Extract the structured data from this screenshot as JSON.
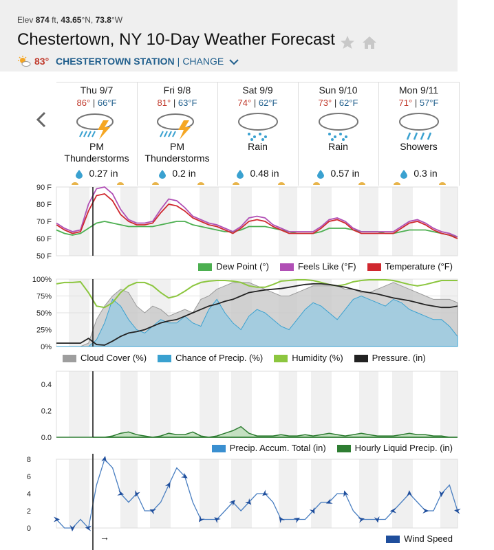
{
  "header": {
    "elev_label": "Elev",
    "elev_value": "874",
    "elev_unit": "ft,",
    "lat": "43.65",
    "lat_suffix": "°N,",
    "lon": "73.8",
    "lon_suffix": "°W",
    "title": "Chestertown, NY 10-Day Weather Forecast",
    "current_temp": "83°",
    "station": "CHESTERTOWN STATION",
    "separator": "|",
    "change": "CHANGE"
  },
  "days": [
    {
      "name": "Thu 9/7",
      "hi": "86°",
      "lo": "66°F",
      "cond1": "PM",
      "cond2": "Thunderstorms",
      "precip": "0.27 in",
      "icon": "thunderstorm-icon"
    },
    {
      "name": "Fri 9/8",
      "hi": "81°",
      "lo": "63°F",
      "cond1": "PM",
      "cond2": "Thunderstorms",
      "precip": "0.2 in",
      "icon": "thunderstorm-icon"
    },
    {
      "name": "Sat 9/9",
      "hi": "74°",
      "lo": "62°F",
      "cond1": "Rain",
      "cond2": "",
      "precip": "0.48 in",
      "icon": "rain-icon"
    },
    {
      "name": "Sun 9/10",
      "hi": "73°",
      "lo": "62°F",
      "cond1": "Rain",
      "cond2": "",
      "precip": "0.57 in",
      "icon": "rain-icon"
    },
    {
      "name": "Mon 9/11",
      "hi": "71°",
      "lo": "57°F",
      "cond1": "Showers",
      "cond2": "",
      "precip": "0.3 in",
      "icon": "showers-icon"
    }
  ],
  "colors": {
    "hi": "#c0392b",
    "lo": "#1f5e8c",
    "dew": "#4caf50",
    "feels": "#b04fb5",
    "temp": "#d0282f",
    "cloud": "#9e9e9e",
    "precipchance": "#3aa1d0",
    "humidity": "#8cc63f",
    "pressure": "#222222",
    "accum": "#3a8fd0",
    "hourly": "#2e7d32",
    "wind": "#1f4e9c"
  },
  "temp_chart": {
    "y_ticks": [
      "90 F",
      "80 F",
      "70 F",
      "60 F",
      "50 F"
    ],
    "legend": [
      "Dew Point (°)",
      "Feels Like (°F)",
      "Temperature (°F)"
    ]
  },
  "pct_chart": {
    "y_ticks": [
      "100%",
      "75%",
      "50%",
      "25%",
      "0%"
    ],
    "legend": [
      "Cloud Cover (%)",
      "Chance of Precip. (%)",
      "Humidity (%)",
      "Pressure. (in)"
    ]
  },
  "precip_chart": {
    "y_ticks": [
      "0.4",
      "0.2",
      "0.0"
    ],
    "legend": [
      "Precip. Accum. Total (in)",
      "Hourly Liquid Precip. (in)"
    ]
  },
  "wind_chart": {
    "y_ticks": [
      "8",
      "6",
      "4",
      "2",
      "0"
    ],
    "legend": [
      "Wind Speed"
    ],
    "arrow": "→"
  },
  "chart_data": [
    {
      "type": "line",
      "x": [
        0,
        3,
        6,
        9,
        12,
        15,
        18,
        21,
        24,
        27,
        30,
        33,
        36,
        39,
        42,
        45,
        48,
        51,
        54,
        57,
        60,
        63,
        66,
        69,
        72,
        75,
        78,
        81,
        84,
        87,
        90,
        93,
        96,
        99,
        102,
        105,
        108,
        111,
        114,
        117,
        120,
        123,
        126,
        129,
        132,
        135,
        138,
        141,
        144,
        147,
        150
      ],
      "series": [
        {
          "name": "Temperature (°F)",
          "values": [
            68,
            65,
            63,
            64,
            76,
            85,
            86,
            82,
            74,
            70,
            68,
            68,
            69,
            75,
            80,
            79,
            76,
            72,
            70,
            68,
            67,
            65,
            63,
            66,
            70,
            71,
            70,
            67,
            65,
            63,
            63,
            63,
            63,
            66,
            70,
            71,
            69,
            65,
            63,
            63,
            63,
            63,
            63,
            66,
            69,
            70,
            68,
            65,
            63,
            62,
            60
          ]
        },
        {
          "name": "Feels Like (°F)",
          "values": [
            69,
            66,
            64,
            65,
            80,
            89,
            90,
            86,
            77,
            71,
            69,
            69,
            70,
            77,
            83,
            82,
            78,
            73,
            71,
            69,
            68,
            66,
            64,
            67,
            72,
            73,
            72,
            68,
            66,
            64,
            64,
            64,
            64,
            67,
            71,
            72,
            70,
            66,
            64,
            64,
            64,
            64,
            64,
            67,
            70,
            71,
            69,
            66,
            64,
            63,
            61
          ]
        },
        {
          "name": "Dew Point (°)",
          "values": [
            65,
            63,
            62,
            63,
            66,
            69,
            70,
            69,
            68,
            67,
            67,
            67,
            67,
            68,
            69,
            70,
            70,
            68,
            67,
            66,
            65,
            64,
            64,
            65,
            67,
            67,
            67,
            66,
            65,
            64,
            63,
            63,
            63,
            64,
            66,
            66,
            66,
            65,
            64,
            64,
            64,
            63,
            63,
            64,
            65,
            65,
            65,
            64,
            63,
            62,
            61
          ]
        }
      ],
      "y_ticks": [
        "90 F",
        "80 F",
        "70 F",
        "60 F",
        "50 F"
      ],
      "ylim": [
        50,
        90
      ],
      "legend": "bottom-right"
    },
    {
      "type": "area",
      "x": [
        0,
        3,
        6,
        9,
        12,
        15,
        18,
        21,
        24,
        27,
        30,
        33,
        36,
        39,
        42,
        45,
        48,
        51,
        54,
        57,
        60,
        63,
        66,
        69,
        72,
        75,
        78,
        81,
        84,
        87,
        90,
        93,
        96,
        99,
        102,
        105,
        108,
        111,
        114,
        117,
        120,
        123,
        126,
        129,
        132,
        135,
        138,
        141,
        144,
        147,
        150
      ],
      "series": [
        {
          "name": "Cloud Cover (%)",
          "values": [
            0,
            0,
            0,
            0,
            5,
            40,
            60,
            75,
            85,
            80,
            60,
            50,
            60,
            55,
            45,
            50,
            55,
            50,
            70,
            75,
            85,
            90,
            95,
            95,
            95,
            90,
            85,
            80,
            75,
            75,
            80,
            85,
            90,
            90,
            90,
            90,
            85,
            85,
            80,
            80,
            85,
            90,
            95,
            90,
            85,
            80,
            75,
            70,
            70,
            70,
            65
          ]
        },
        {
          "name": "Chance of Precip. (%)",
          "values": [
            0,
            0,
            0,
            0,
            0,
            10,
            35,
            70,
            60,
            40,
            25,
            20,
            30,
            40,
            35,
            35,
            45,
            35,
            30,
            55,
            70,
            50,
            35,
            25,
            45,
            55,
            50,
            40,
            30,
            25,
            40,
            55,
            65,
            60,
            50,
            40,
            55,
            70,
            75,
            70,
            65,
            60,
            70,
            65,
            55,
            50,
            45,
            40,
            40,
            30,
            15
          ]
        },
        {
          "name": "Humidity (%)",
          "values": [
            93,
            95,
            95,
            96,
            80,
            60,
            58,
            65,
            80,
            90,
            95,
            95,
            90,
            80,
            72,
            75,
            82,
            90,
            95,
            97,
            98,
            98,
            97,
            95,
            90,
            88,
            88,
            92,
            97,
            98,
            99,
            99,
            98,
            95,
            92,
            90,
            92,
            96,
            98,
            99,
            99,
            99,
            98,
            95,
            92,
            90,
            92,
            95,
            98,
            98,
            98
          ]
        },
        {
          "name": "Pressure. (in)",
          "values": [
            5,
            5,
            5,
            5,
            12,
            3,
            2,
            8,
            15,
            20,
            22,
            25,
            30,
            35,
            38,
            40,
            45,
            50,
            55,
            60,
            63,
            67,
            70,
            75,
            80,
            82,
            84,
            85,
            86,
            88,
            90,
            92,
            93,
            93,
            92,
            90,
            88,
            85,
            82,
            80,
            78,
            75,
            72,
            70,
            68,
            65,
            62,
            60,
            58,
            58,
            60
          ]
        }
      ],
      "y_ticks": [
        "100%",
        "75%",
        "50%",
        "25%",
        "0%"
      ],
      "ylim": [
        0,
        100
      ],
      "legend": "bottom"
    },
    {
      "type": "area",
      "x": [
        0,
        3,
        6,
        9,
        12,
        15,
        18,
        21,
        24,
        27,
        30,
        33,
        36,
        39,
        42,
        45,
        48,
        51,
        54,
        57,
        60,
        63,
        66,
        69,
        72,
        75,
        78,
        81,
        84,
        87,
        90,
        93,
        96,
        99,
        102,
        105,
        108,
        111,
        114,
        117,
        120,
        123,
        126,
        129,
        132,
        135,
        138,
        141,
        144,
        147,
        150
      ],
      "series": [
        {
          "name": "Precip. Accum. Total (in)",
          "values": [
            0,
            0,
            0,
            0,
            0,
            0,
            0,
            0,
            0,
            0,
            0,
            0,
            0,
            0,
            0,
            0,
            0,
            0,
            0,
            0,
            0,
            0,
            0,
            0,
            0,
            0,
            0,
            0,
            0,
            0,
            0,
            0,
            0,
            0,
            0,
            0,
            0,
            0,
            0,
            0,
            0,
            0,
            0,
            0,
            0,
            0,
            0,
            0,
            0,
            0,
            0
          ]
        },
        {
          "name": "Hourly Liquid Precip. (in)",
          "values": [
            0,
            0,
            0,
            0,
            0,
            0,
            0,
            0.01,
            0.03,
            0.04,
            0.02,
            0.01,
            0,
            0.01,
            0.03,
            0.02,
            0.02,
            0.04,
            0.01,
            0,
            0.01,
            0.03,
            0.05,
            0.08,
            0.03,
            0.01,
            0.01,
            0.01,
            0.02,
            0.01,
            0.01,
            0.02,
            0.01,
            0.02,
            0.03,
            0.02,
            0.01,
            0.02,
            0.03,
            0.02,
            0.01,
            0.01,
            0.01,
            0.02,
            0.03,
            0.02,
            0.02,
            0.01,
            0.01,
            0,
            0
          ]
        }
      ],
      "y_ticks": [
        "0.4",
        "0.2",
        "0.0"
      ],
      "ylim": [
        0,
        0.5
      ],
      "legend": "bottom-right"
    },
    {
      "type": "line",
      "x": [
        0,
        3,
        6,
        9,
        12,
        15,
        18,
        21,
        24,
        27,
        30,
        33,
        36,
        39,
        42,
        45,
        48,
        51,
        54,
        57,
        60,
        63,
        66,
        69,
        72,
        75,
        78,
        81,
        84,
        87,
        90,
        93,
        96,
        99,
        102,
        105,
        108,
        111,
        114,
        117,
        120,
        123,
        126,
        129,
        132,
        135,
        138,
        141,
        144,
        147,
        150
      ],
      "series": [
        {
          "name": "Wind Speed",
          "values": [
            1,
            0,
            0,
            1,
            0,
            5,
            8,
            7,
            4,
            3,
            4,
            2,
            2,
            3,
            5,
            7,
            6,
            3,
            1,
            1,
            1,
            2,
            3,
            2,
            3,
            4,
            4,
            3,
            1,
            1,
            1,
            1,
            2,
            3,
            3,
            4,
            4,
            2,
            1,
            1,
            1,
            1,
            2,
            3,
            4,
            3,
            2,
            2,
            4,
            5,
            2
          ]
        }
      ],
      "y_ticks": [
        "8",
        "6",
        "4",
        "2",
        "0"
      ],
      "ylim": [
        0,
        8
      ],
      "legend": "bottom-right"
    }
  ]
}
